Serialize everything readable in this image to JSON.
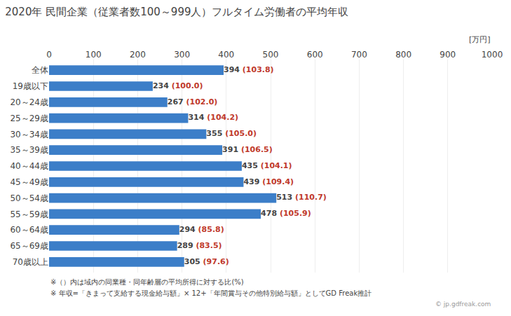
{
  "chart_data": {
    "type": "bar",
    "orientation": "horizontal",
    "title": "2020年 民間企業（従業者数100～999人）フルタイム労働者の平均年収",
    "categories": [
      "全体",
      "19歳以下",
      "20～24歳",
      "25～29歳",
      "30～34歳",
      "35～39歳",
      "40～44歳",
      "45～49歳",
      "50～54歳",
      "55～59歳",
      "60～64歳",
      "65～69歳",
      "70歳以上"
    ],
    "values": [
      394,
      234,
      267,
      314,
      355,
      391,
      435,
      439,
      513,
      478,
      294,
      289,
      305
    ],
    "color": "#3C7EC8",
    "data_labels": true,
    "ratios": {
      "values": [
        103.8,
        100.0,
        102.0,
        104.2,
        105.0,
        106.5,
        104.1,
        109.4,
        110.7,
        105.9,
        85.8,
        83.5,
        97.6
      ],
      "value_labels": [
        "(103.8)",
        "(100.0)",
        "(102.0)",
        "(104.2)",
        "(105.0)",
        "(106.5)",
        "(104.1)",
        "(109.4)",
        "(110.7)",
        "(105.9)",
        "(85.8)",
        "(83.5)",
        "(97.6)"
      ],
      "color": "#C0392B"
    },
    "xlim": [
      0,
      1000
    ],
    "xticks": [
      0,
      100,
      200,
      300,
      400,
      500,
      600,
      700,
      800,
      900,
      1000
    ],
    "grid": true,
    "annotations": [
      "[万円]",
      "※（）内は域内の同業種・同年齢層の平均所得に対する比(%)",
      "※ 年収=「きまって支給する現金給与額」× 12+「年間賞与その他特別給与額」としてGD Freak推計",
      "© jp.gdfreak.com"
    ]
  }
}
